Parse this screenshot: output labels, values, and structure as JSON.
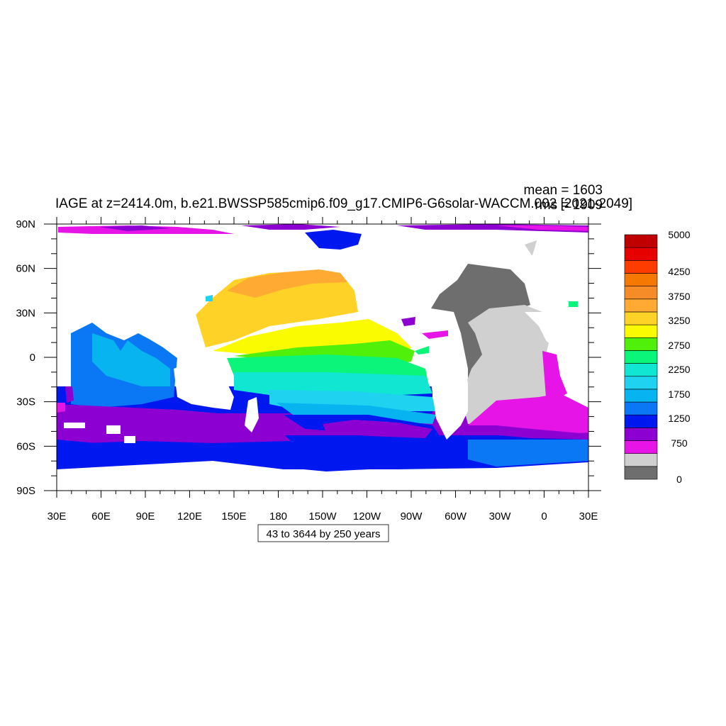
{
  "title": "IAGE at z=2414.0m, b.e21.BWSSP585cmip6.f09_g17.CMIP6-G6solar-WACCM.002 [2021-2049]",
  "stats": {
    "mean": "mean = 1603",
    "rms": "rms = 1909"
  },
  "contour_info": "43 to 3644 by 250 years",
  "colors": {
    "land": "#ffffff",
    "levels": [
      "#6e6e6e",
      "#d0d0d0",
      "#e614e6",
      "#8c00d2",
      "#0018f0",
      "#0a78f5",
      "#08b4f0",
      "#1ed2f0",
      "#10e6d2",
      "#0af57a",
      "#50f00a",
      "#fafa00",
      "#ffd228",
      "#ffaa32",
      "#f58c28",
      "#f57800",
      "#ff3c00",
      "#e60000",
      "#c00000"
    ]
  },
  "chart_data": {
    "type": "heatmap",
    "projection": "cylindrical equidistant",
    "x_ticks": [
      "30E",
      "60E",
      "90E",
      "120E",
      "150E",
      "180",
      "150W",
      "120W",
      "90W",
      "60W",
      "30W",
      "0",
      "30E"
    ],
    "y_ticks": [
      "90N",
      "60N",
      "30N",
      "0",
      "30S",
      "60S",
      "90S"
    ],
    "xlim": [
      30,
      390
    ],
    "ylim": [
      -90,
      90
    ],
    "colorbar": {
      "labels": [
        "5000",
        "4250",
        "3750",
        "3250",
        "2750",
        "2250",
        "1750",
        "1250",
        "750",
        "0"
      ],
      "range": [
        0,
        5000
      ]
    }
  }
}
